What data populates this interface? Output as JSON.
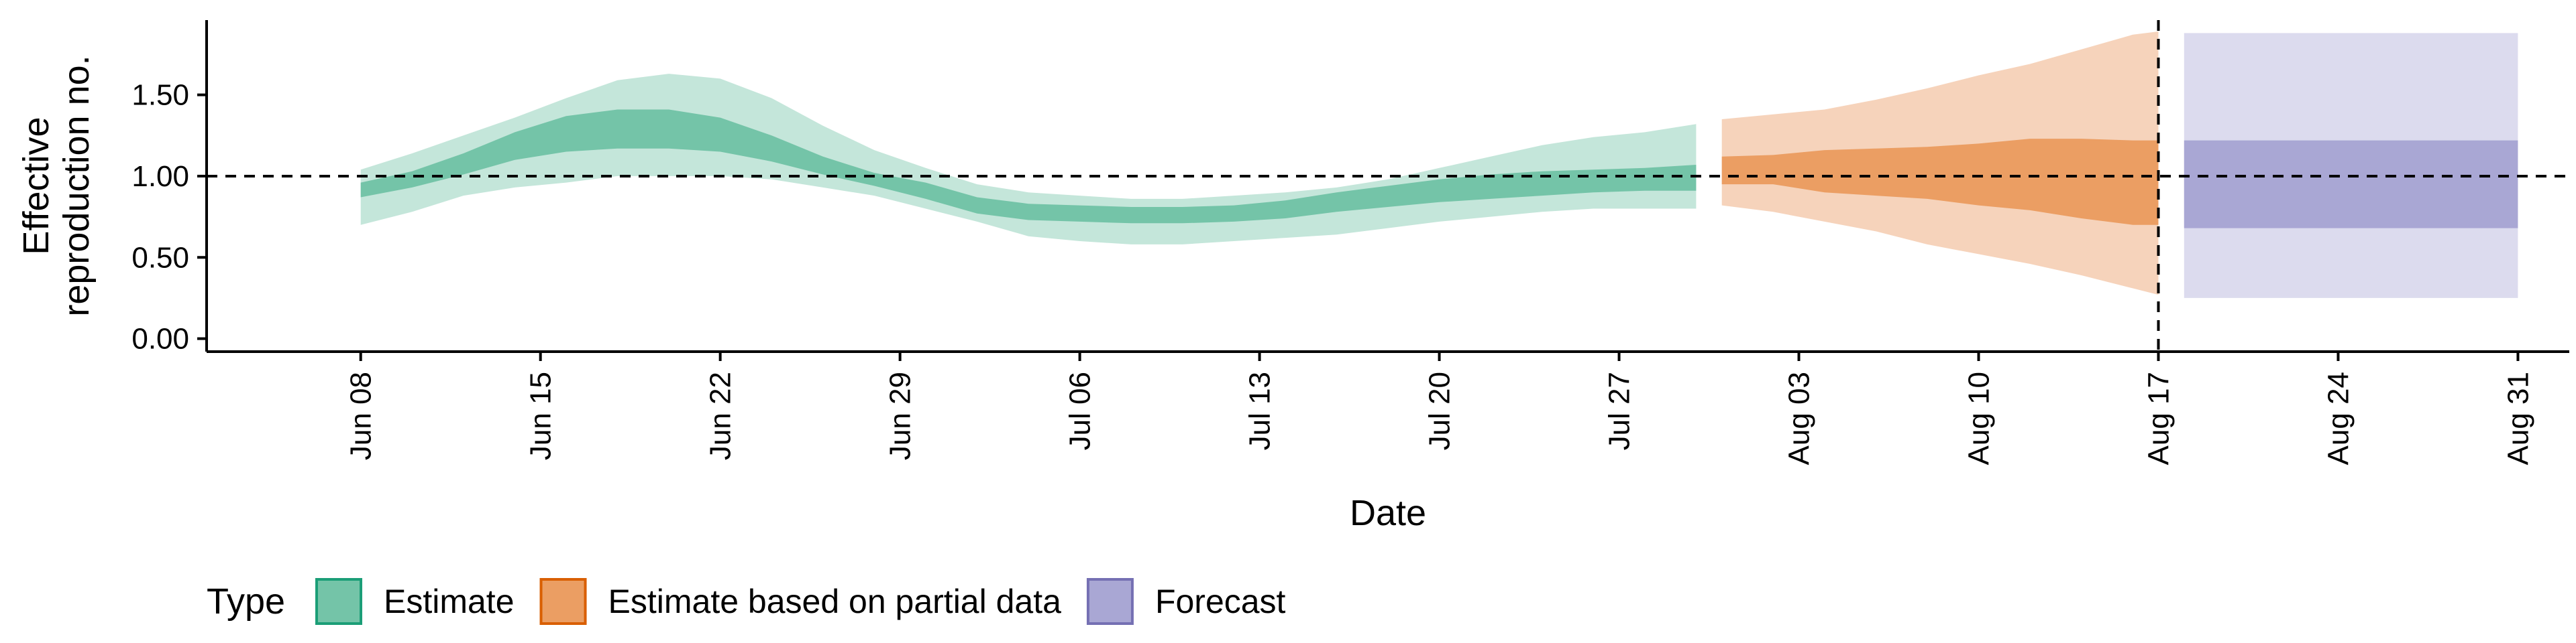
{
  "chart_data": {
    "type": "area",
    "xlabel": "Date",
    "ylabel_lines": [
      "Effective",
      "reproduction no."
    ],
    "y_ticks": [
      0.0,
      0.5,
      1.0,
      1.5
    ],
    "y_tick_labels": [
      "0.00",
      "0.50",
      "1.00",
      "1.50"
    ],
    "ylim": [
      -0.08,
      1.96
    ],
    "xlim": [
      "2020-06-02",
      "2020-09-02"
    ],
    "x_ticks": [
      "2020-06-08",
      "2020-06-15",
      "2020-06-22",
      "2020-06-29",
      "2020-07-06",
      "2020-07-13",
      "2020-07-20",
      "2020-07-27",
      "2020-08-03",
      "2020-08-10",
      "2020-08-17",
      "2020-08-24",
      "2020-08-31"
    ],
    "x_tick_labels": [
      "Jun 08",
      "Jun 15",
      "Jun 22",
      "Jun 29",
      "Jul 06",
      "Jul 13",
      "Jul 20",
      "Jul 27",
      "Aug 03",
      "Aug 10",
      "Aug 17",
      "Aug 24",
      "Aug 31"
    ],
    "reference_hline": 1.0,
    "reference_vline": "2020-08-17",
    "legend": {
      "title": "Type",
      "placement": "bottom-left",
      "entries": [
        {
          "label": "Estimate",
          "fill": "#74c4a8",
          "stroke": "#1b9e77"
        },
        {
          "label": "Estimate based on partial data",
          "fill": "#eb9e63",
          "stroke": "#d95f02"
        },
        {
          "label": "Forecast",
          "fill": "#a9a7d4",
          "stroke": "#7570b3"
        }
      ]
    },
    "series": [
      {
        "type": "Estimate",
        "color_outer": "#c4e6da",
        "color_inner": "#74c4a8",
        "dates": [
          "2020-06-08",
          "2020-06-10",
          "2020-06-12",
          "2020-06-14",
          "2020-06-16",
          "2020-06-18",
          "2020-06-20",
          "2020-06-22",
          "2020-06-24",
          "2020-06-26",
          "2020-06-28",
          "2020-06-30",
          "2020-07-02",
          "2020-07-04",
          "2020-07-06",
          "2020-07-08",
          "2020-07-10",
          "2020-07-12",
          "2020-07-14",
          "2020-07-16",
          "2020-07-18",
          "2020-07-20",
          "2020-07-22",
          "2020-07-24",
          "2020-07-26",
          "2020-07-28",
          "2020-07-30"
        ],
        "outer_lower": [
          0.7,
          0.78,
          0.88,
          0.93,
          0.96,
          1.0,
          1.0,
          1.0,
          0.98,
          0.93,
          0.88,
          0.8,
          0.72,
          0.63,
          0.6,
          0.58,
          0.58,
          0.6,
          0.62,
          0.64,
          0.68,
          0.72,
          0.75,
          0.78,
          0.8,
          0.8,
          0.8
        ],
        "outer_upper": [
          1.04,
          1.14,
          1.25,
          1.36,
          1.48,
          1.59,
          1.63,
          1.6,
          1.48,
          1.31,
          1.16,
          1.05,
          0.95,
          0.9,
          0.88,
          0.86,
          0.86,
          0.88,
          0.9,
          0.93,
          0.98,
          1.05,
          1.12,
          1.19,
          1.24,
          1.27,
          1.32
        ],
        "inner_lower": [
          0.87,
          0.93,
          1.01,
          1.1,
          1.15,
          1.17,
          1.17,
          1.15,
          1.09,
          1.01,
          0.94,
          0.86,
          0.77,
          0.73,
          0.72,
          0.71,
          0.71,
          0.72,
          0.74,
          0.78,
          0.81,
          0.84,
          0.86,
          0.88,
          0.9,
          0.91,
          0.91
        ],
        "inner_upper": [
          0.96,
          1.03,
          1.14,
          1.27,
          1.37,
          1.41,
          1.41,
          1.36,
          1.25,
          1.12,
          1.02,
          0.96,
          0.87,
          0.83,
          0.82,
          0.81,
          0.81,
          0.82,
          0.85,
          0.9,
          0.94,
          0.98,
          1.01,
          1.03,
          1.04,
          1.05,
          1.07
        ]
      },
      {
        "type": "Estimate based on partial data",
        "color_outer": "#f6d3bb",
        "color_inner": "#eb9e63",
        "dates": [
          "2020-07-31",
          "2020-08-02",
          "2020-08-04",
          "2020-08-06",
          "2020-08-08",
          "2020-08-10",
          "2020-08-12",
          "2020-08-14",
          "2020-08-16",
          "2020-08-17"
        ],
        "outer_lower": [
          0.82,
          0.78,
          0.72,
          0.66,
          0.58,
          0.52,
          0.46,
          0.39,
          0.31,
          0.27
        ],
        "outer_upper": [
          1.35,
          1.38,
          1.41,
          1.47,
          1.54,
          1.62,
          1.69,
          1.78,
          1.87,
          1.89
        ],
        "inner_lower": [
          0.95,
          0.95,
          0.9,
          0.88,
          0.86,
          0.82,
          0.79,
          0.74,
          0.7,
          0.7
        ],
        "inner_upper": [
          1.12,
          1.13,
          1.16,
          1.17,
          1.18,
          1.2,
          1.23,
          1.23,
          1.22,
          1.22
        ]
      },
      {
        "type": "Forecast",
        "color_outer": "#dcdbee",
        "color_inner": "#a9a7d4",
        "dates": [
          "2020-08-18",
          "2020-08-31"
        ],
        "outer_lower": [
          0.25,
          0.25
        ],
        "outer_upper": [
          1.88,
          1.88
        ],
        "inner_lower": [
          0.68,
          0.68
        ],
        "inner_upper": [
          1.22,
          1.22
        ]
      }
    ]
  }
}
